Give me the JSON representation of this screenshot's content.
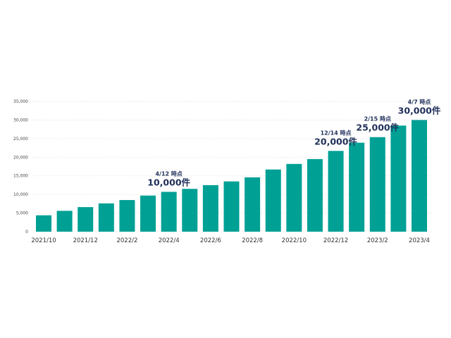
{
  "chart_data": {
    "type": "bar",
    "title": "",
    "xlabel": "",
    "ylabel": "",
    "ylim": [
      0,
      35000
    ],
    "grid": true,
    "legend": "none",
    "bar_color": "#00a095",
    "annotation_color": "#1f2f5a",
    "yticks": [
      0,
      5000,
      10000,
      15000,
      20000,
      25000,
      30000,
      35000
    ],
    "ytick_labels": [
      "0",
      "5,000",
      "10,000",
      "15,000",
      "20,000",
      "25,000",
      "30,000",
      "35,000"
    ],
    "categories": [
      "2021/10",
      "2021/11",
      "2021/12",
      "2022/1",
      "2022/2",
      "2022/3",
      "2022/4",
      "2022/5",
      "2022/6",
      "2022/7",
      "2022/8",
      "2022/9",
      "2022/10",
      "2022/11",
      "2022/12",
      "2023/1",
      "2023/2",
      "2023/3",
      "2023/4"
    ],
    "xtick_labels": [
      "2021/10",
      "",
      "2021/12",
      "",
      "2022/2",
      "",
      "2022/4",
      "",
      "2022/6",
      "",
      "2022/8",
      "",
      "2022/10",
      "",
      "2022/12",
      "",
      "2023/2",
      "",
      "2023/4"
    ],
    "values": [
      4400,
      5600,
      6600,
      7600,
      8500,
      9700,
      10700,
      11500,
      12500,
      13500,
      14600,
      16700,
      18200,
      19500,
      21700,
      23900,
      25400,
      28500,
      30000
    ],
    "annotations": [
      {
        "category_index": 6,
        "date": "4/12 時点",
        "count": "10,000件"
      },
      {
        "category_index": 14,
        "date": "12/14 時点",
        "count": "20,000件"
      },
      {
        "category_index": 16,
        "date": "2/15 時点",
        "count": "25,000件"
      },
      {
        "category_index": 18,
        "date": "4/7 時点",
        "count": "30,000件"
      }
    ]
  }
}
